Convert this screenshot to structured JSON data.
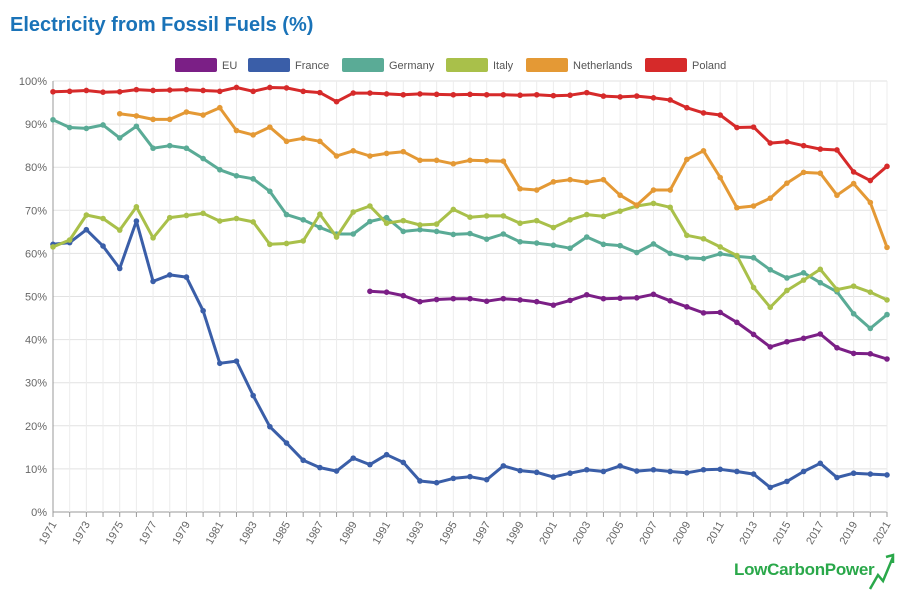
{
  "chart_data": {
    "type": "line",
    "title": "Electricity from Fossil Fuels (%)",
    "ylim": [
      0,
      100
    ],
    "y_ticks": [
      "0%",
      "10%",
      "20%",
      "30%",
      "40%",
      "50%",
      "60%",
      "70%",
      "80%",
      "90%",
      "100%"
    ],
    "x_tick_labels": [
      "1971",
      "1973",
      "1975",
      "1977",
      "1979",
      "1981",
      "1983",
      "1985",
      "1987",
      "1989",
      "1991",
      "1993",
      "1995",
      "1997",
      "1999",
      "2001",
      "2003",
      "2005",
      "2007",
      "2009",
      "2011",
      "2013",
      "2015",
      "2017",
      "2019",
      "2021"
    ],
    "grid": true,
    "legend_position": "top",
    "series": [
      {
        "name": "EU",
        "color": "#7b1f86",
        "start": 1990,
        "values": [
          51.2,
          51.0,
          50.2,
          48.8,
          49.3,
          49.5,
          49.5,
          48.9,
          49.5,
          49.2,
          48.8,
          48.0,
          49.1,
          50.4,
          49.5,
          49.6,
          49.7,
          50.5,
          49.0,
          47.6,
          46.2,
          46.3,
          44.0,
          41.2,
          38.3,
          39.5,
          40.3,
          41.3,
          38.1,
          36.8,
          36.7,
          35.5
        ]
      },
      {
        "name": "France",
        "color": "#3a5ea8",
        "start": 1971,
        "values": [
          62.1,
          62.5,
          65.5,
          61.7,
          56.5,
          67.5,
          53.5,
          55.0,
          54.5,
          46.7,
          34.5,
          35.0,
          27.0,
          19.8,
          16.0,
          12.0,
          10.3,
          9.5,
          12.5,
          11.0,
          13.3,
          11.5,
          7.2,
          6.8,
          7.8,
          8.2,
          7.5,
          10.7,
          9.6,
          9.2,
          8.1,
          9.0,
          9.8,
          9.4,
          10.7,
          9.5,
          9.8,
          9.4,
          9.1,
          9.8,
          9.9,
          9.4,
          8.8,
          5.7,
          7.1,
          9.4,
          11.3,
          8.0,
          9.0,
          8.8,
          8.6
        ]
      },
      {
        "name": "Germany",
        "color": "#5aab96",
        "start": 1971,
        "values": [
          91.0,
          89.2,
          89.0,
          89.8,
          86.8,
          89.5,
          84.4,
          85.0,
          84.4,
          82.0,
          79.4,
          78.0,
          77.3,
          74.4,
          69.0,
          67.8,
          66.0,
          64.5,
          64.5,
          67.4,
          68.3,
          65.1,
          65.5,
          65.1,
          64.4,
          64.6,
          63.3,
          64.5,
          62.7,
          62.4,
          61.9,
          61.2,
          63.8,
          62.1,
          61.8,
          60.2,
          62.2,
          60.0,
          59.0,
          58.8,
          59.9,
          59.3,
          59.0,
          56.2,
          54.3,
          55.5,
          53.2,
          51.1,
          46.0,
          42.6,
          45.8
        ]
      },
      {
        "name": "Italy",
        "color": "#a9c04a",
        "start": 1971,
        "values": [
          61.5,
          63.1,
          68.9,
          68.1,
          65.4,
          70.8,
          63.6,
          68.3,
          68.8,
          69.3,
          67.5,
          68.1,
          67.3,
          62.1,
          62.3,
          62.9,
          69.1,
          63.8,
          69.6,
          71.0,
          67.0,
          67.6,
          66.6,
          66.8,
          70.2,
          68.4,
          68.7,
          68.7,
          67.0,
          67.6,
          66.0,
          67.8,
          69.0,
          68.6,
          69.8,
          71.0,
          71.6,
          70.7,
          64.2,
          63.4,
          61.5,
          59.5,
          52.1,
          47.5,
          51.4,
          53.8,
          56.3,
          51.6,
          52.4,
          51.0,
          49.2
        ]
      },
      {
        "name": "Netherlands",
        "color": "#e49935",
        "start": 1975,
        "values": [
          92.4,
          91.9,
          91.1,
          91.1,
          92.8,
          92.1,
          93.8,
          88.5,
          87.5,
          89.3,
          86.0,
          86.7,
          86.0,
          82.6,
          83.8,
          82.6,
          83.2,
          83.6,
          81.6,
          81.6,
          80.8,
          81.6,
          81.5,
          81.4,
          75.0,
          74.7,
          76.6,
          77.1,
          76.5,
          77.1,
          73.5,
          71.2,
          74.7,
          74.7,
          81.8,
          83.8,
          77.6,
          70.6,
          71.0,
          72.8,
          76.3,
          78.8,
          78.6,
          73.5,
          76.2,
          71.8,
          61.4
        ]
      },
      {
        "name": "Poland",
        "color": "#d62a2a",
        "start": 1971,
        "values": [
          97.5,
          97.6,
          97.8,
          97.4,
          97.5,
          98.0,
          97.8,
          97.9,
          98.0,
          97.8,
          97.6,
          98.5,
          97.6,
          98.5,
          98.4,
          97.6,
          97.3,
          95.2,
          97.2,
          97.2,
          97.0,
          96.8,
          97.0,
          96.9,
          96.8,
          96.9,
          96.8,
          96.8,
          96.7,
          96.8,
          96.6,
          96.7,
          97.3,
          96.5,
          96.3,
          96.5,
          96.1,
          95.6,
          93.8,
          92.6,
          92.1,
          89.2,
          89.3,
          85.6,
          85.9,
          85.0,
          84.2,
          84.0,
          78.9,
          76.9,
          80.2
        ]
      }
    ]
  },
  "brand": "LowCarbonPower"
}
